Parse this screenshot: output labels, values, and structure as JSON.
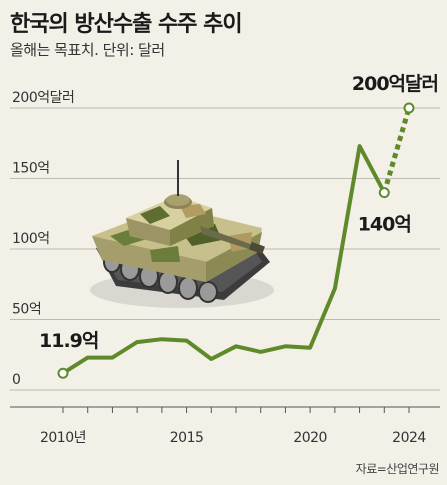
{
  "title": "한국의 방산수출 수주 추이",
  "subtitle": "올해는 목표치. 단위: 달러",
  "source": "자료=산업연구원",
  "colors": {
    "background": "#f3f0e8",
    "line": "#5f8a2a",
    "marker_fill": "#ffffff",
    "grid": "#bdbab2"
  },
  "illustration": "tank-icon",
  "chart_data": {
    "type": "line",
    "title": "한국의 방산수출 수주 추이",
    "subtitle": "올해는 목표치. 단위: 달러",
    "x": [
      2010,
      2011,
      2012,
      2013,
      2014,
      2015,
      2016,
      2017,
      2018,
      2019,
      2020,
      2021,
      2022,
      2023,
      2024
    ],
    "series": [
      {
        "values": [
          11.9,
          23,
          23,
          34,
          36,
          35,
          22,
          31,
          27,
          31,
          30,
          72,
          173,
          140,
          null
        ],
        "style": "solid"
      },
      {
        "values": [
          null,
          null,
          null,
          null,
          null,
          null,
          null,
          null,
          null,
          null,
          null,
          null,
          null,
          140,
          200
        ],
        "style": "dotted"
      }
    ],
    "xticks": [
      {
        "value": 2010,
        "label": "2010년"
      },
      {
        "value": 2015,
        "label": "2015"
      },
      {
        "value": 2020,
        "label": "2020"
      },
      {
        "value": 2024,
        "label": "2024"
      }
    ],
    "yticks": [
      {
        "value": 0,
        "label": "0"
      },
      {
        "value": 50,
        "label": "50억"
      },
      {
        "value": 100,
        "label": "100억"
      },
      {
        "value": 150,
        "label": "150억"
      },
      {
        "value": 200,
        "label": "200억달러"
      }
    ],
    "ylim": [
      0,
      200
    ],
    "xlim": [
      2010,
      2024
    ],
    "grid": true,
    "markers": [
      {
        "x": 2010,
        "y": 11.9
      },
      {
        "x": 2023,
        "y": 140
      },
      {
        "x": 2024,
        "y": 200
      }
    ],
    "annotations": [
      {
        "x": 2010,
        "y": 11.9,
        "text": "11.9억"
      },
      {
        "x": 2023,
        "y": 140,
        "text": "140억"
      },
      {
        "x": 2024,
        "y": 200,
        "text": "200억달러"
      }
    ]
  }
}
